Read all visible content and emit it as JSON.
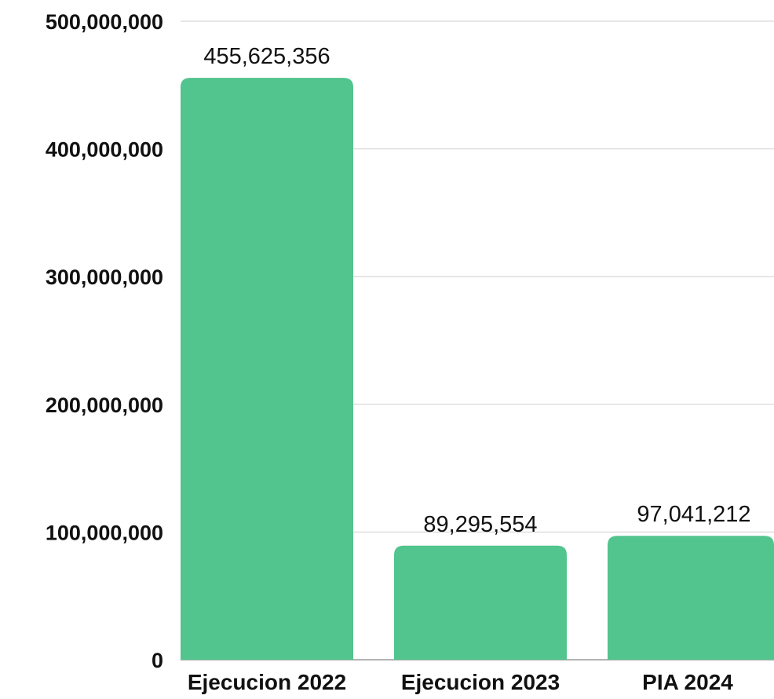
{
  "chart_data": {
    "type": "bar",
    "title": "",
    "xlabel": "",
    "ylabel": "",
    "categories": [
      "Ejecucion 2022",
      "Ejecucion 2023",
      "PIA 2024"
    ],
    "values": [
      455625356,
      89295554,
      97041212
    ],
    "value_labels": [
      "455,625,356",
      "89,295,554",
      "97,041,212"
    ],
    "ylim": [
      0,
      500000000
    ],
    "y_ticks": [
      0,
      100000000,
      200000000,
      300000000,
      400000000,
      500000000
    ],
    "y_tick_labels": [
      "0",
      "100,000,000",
      "200,000,000",
      "300,000,000",
      "400,000,000",
      "500,000,000"
    ],
    "grid": true,
    "legend": "none",
    "colors": {
      "bar": "#52C48E",
      "grid": "#cfcfcf",
      "text": "#111111"
    }
  }
}
